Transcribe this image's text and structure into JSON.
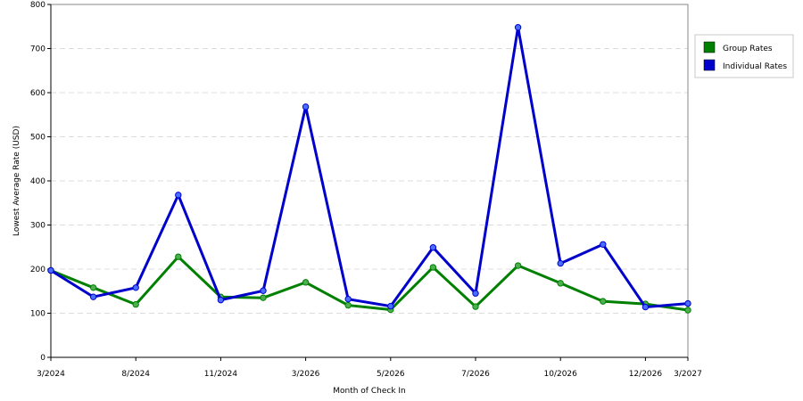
{
  "chart_data": {
    "type": "line",
    "title": "",
    "xlabel": "Month of Check In",
    "ylabel": "Lowest Average Rate (USD)",
    "ylim": [
      0,
      800
    ],
    "yticks": [
      0,
      100,
      200,
      300,
      400,
      500,
      600,
      700,
      800
    ],
    "grid": true,
    "legend_placement": "top-right",
    "x_tick_labels": [
      {
        "index": 0,
        "label": "3/2024"
      },
      {
        "index": 2,
        "label": "8/2024"
      },
      {
        "index": 4,
        "label": "11/2024"
      },
      {
        "index": 6,
        "label": "3/2026"
      },
      {
        "index": 8,
        "label": "5/2026"
      },
      {
        "index": 10,
        "label": "7/2026"
      },
      {
        "index": 12,
        "label": "10/2026"
      },
      {
        "index": 14,
        "label": "12/2026"
      },
      {
        "index": 15,
        "label": "3/2027"
      }
    ],
    "point_count": 16,
    "series": [
      {
        "name": "Group Rates",
        "color": "#008000",
        "marker_color": "#4caf50",
        "values": [
          197,
          158,
          120,
          228,
          137,
          135,
          170,
          118,
          108,
          204,
          115,
          208,
          168,
          127,
          121,
          107
        ]
      },
      {
        "name": "Individual Rates",
        "color": "#0000cc",
        "marker_color": "#4a6fff",
        "values": [
          197,
          137,
          158,
          368,
          130,
          151,
          568,
          132,
          116,
          249,
          145,
          748,
          213,
          256,
          114,
          122
        ]
      }
    ]
  }
}
